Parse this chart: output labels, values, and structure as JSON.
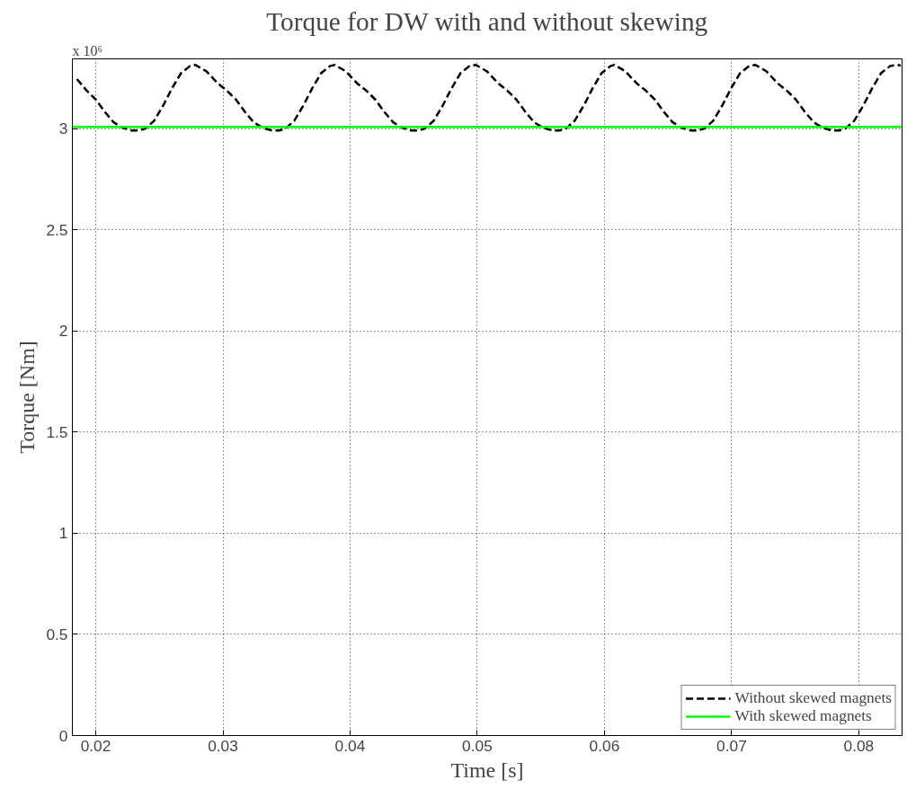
{
  "chart_data": {
    "type": "line",
    "title": "Torque for DW with and without skewing",
    "xlabel": "Time [s]",
    "ylabel": "Torque [Nm]",
    "annotations": [
      "x 10⁶"
    ],
    "xlim": [
      0.01816,
      0.0834
    ],
    "ylim": [
      0,
      3.345
    ],
    "xticks": [
      0.02,
      0.03,
      0.04,
      0.05,
      0.06,
      0.07,
      0.08
    ],
    "yticks": [
      0,
      0.5,
      1,
      1.5,
      2,
      2.5,
      3
    ],
    "grid": true,
    "legend": "bottom right",
    "marker": "none",
    "series": [
      {
        "name": "Without skewed magnets",
        "color": "#000000",
        "line_style": "dashed",
        "x": [
          0.01852,
          0.01929,
          0.02,
          0.02071,
          0.02141,
          0.02212,
          0.02283,
          0.02339,
          0.02389,
          0.02459,
          0.0253,
          0.02601,
          0.02671,
          0.02742,
          0.02784,
          0.02869,
          0.02961,
          0.03031,
          0.03102,
          0.03173,
          0.03243,
          0.03314,
          0.03385,
          0.03441,
          0.03491,
          0.03561,
          0.03632,
          0.03703,
          0.03773,
          0.03844,
          0.0388,
          0.03965,
          0.04057,
          0.04127,
          0.04198,
          0.04269,
          0.04339,
          0.0441,
          0.04481,
          0.04537,
          0.04587,
          0.04657,
          0.04728,
          0.04799,
          0.04869,
          0.0494,
          0.04989,
          0.05074,
          0.05166,
          0.05236,
          0.05307,
          0.05378,
          0.05448,
          0.05519,
          0.0559,
          0.05646,
          0.05696,
          0.05766,
          0.05837,
          0.05908,
          0.05978,
          0.06049,
          0.06078,
          0.06163,
          0.06255,
          0.06325,
          0.06396,
          0.06467,
          0.06537,
          0.06608,
          0.06679,
          0.06735,
          0.06785,
          0.06855,
          0.06926,
          0.06997,
          0.07067,
          0.07138,
          0.07187,
          0.07272,
          0.07364,
          0.07434,
          0.07505,
          0.07576,
          0.07646,
          0.07717,
          0.07788,
          0.07844,
          0.07894,
          0.07964,
          0.08035,
          0.08106,
          0.08176,
          0.08247,
          0.08304,
          0.0833
        ],
        "values": [
          3.245,
          3.188,
          3.144,
          3.083,
          3.031,
          3.004,
          2.991,
          2.991,
          3.0,
          3.039,
          3.114,
          3.201,
          3.275,
          3.31,
          3.315,
          3.284,
          3.223,
          3.188,
          3.144,
          3.083,
          3.031,
          3.004,
          2.991,
          2.991,
          3.0,
          3.039,
          3.114,
          3.201,
          3.275,
          3.31,
          3.315,
          3.284,
          3.223,
          3.188,
          3.144,
          3.083,
          3.031,
          3.004,
          2.991,
          2.991,
          3.0,
          3.039,
          3.114,
          3.201,
          3.275,
          3.31,
          3.315,
          3.284,
          3.223,
          3.188,
          3.144,
          3.083,
          3.031,
          3.004,
          2.991,
          2.991,
          3.0,
          3.039,
          3.114,
          3.201,
          3.275,
          3.31,
          3.315,
          3.284,
          3.223,
          3.188,
          3.144,
          3.083,
          3.031,
          3.004,
          2.991,
          2.991,
          3.0,
          3.039,
          3.114,
          3.201,
          3.275,
          3.31,
          3.315,
          3.284,
          3.223,
          3.188,
          3.144,
          3.083,
          3.031,
          3.004,
          2.991,
          2.991,
          3.0,
          3.039,
          3.114,
          3.201,
          3.275,
          3.31,
          3.315,
          3.312
        ]
      },
      {
        "name": "With skewed magnets",
        "color": "#00ff00",
        "line_style": "solid",
        "x": [
          0.01816,
          0.0834
        ],
        "values": [
          3.009,
          3.009
        ]
      }
    ]
  }
}
